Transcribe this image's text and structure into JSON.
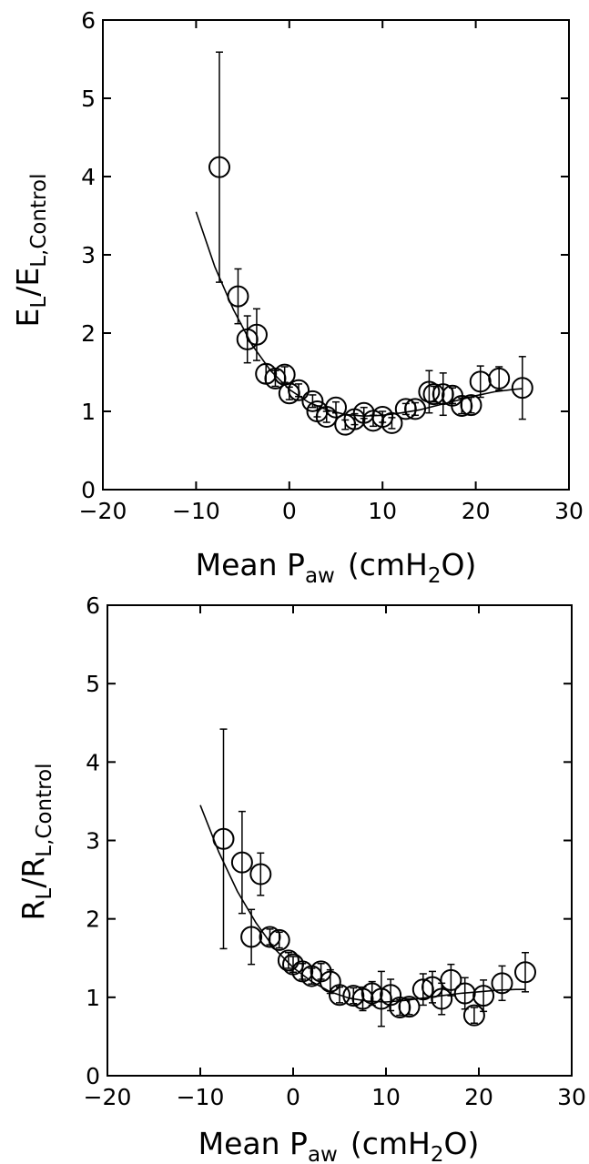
{
  "chart_data": [
    {
      "type": "scatter",
      "xlabel": {
        "main": "Mean P",
        "sub": "aw",
        "unit": "(cmH",
        "unit_sub": "2",
        "unit_end": "O)"
      },
      "ylabel": {
        "a": "E",
        "a_sub": "L",
        "b": "/E",
        "b_sub": "L,Control"
      },
      "xlim": [
        -20,
        30
      ],
      "ylim": [
        0,
        6
      ],
      "xticks": [
        "−20",
        "−10",
        "0",
        "10",
        "20",
        "30"
      ],
      "yticks": [
        "0",
        "1",
        "2",
        "3",
        "4",
        "5",
        "6"
      ],
      "series": [
        {
          "marker": "open-circle",
          "points": [
            {
              "x": -7.5,
              "y": 4.12,
              "err": 1.47
            },
            {
              "x": -5.5,
              "y": 2.47,
              "err": 0.35
            },
            {
              "x": -4.5,
              "y": 1.92,
              "err": 0.3
            },
            {
              "x": -3.5,
              "y": 1.98,
              "err": 0.33
            },
            {
              "x": -2.5,
              "y": 1.48,
              "err": 0.12
            },
            {
              "x": -1.5,
              "y": 1.42,
              "err": 0.1
            },
            {
              "x": -0.5,
              "y": 1.47,
              "err": 0.1
            },
            {
              "x": 0.0,
              "y": 1.23,
              "err": 0.08
            },
            {
              "x": 1.0,
              "y": 1.27,
              "err": 0.08
            },
            {
              "x": 2.5,
              "y": 1.13,
              "err": 0.08
            },
            {
              "x": 3.0,
              "y": 1.0,
              "err": 0.07
            },
            {
              "x": 4.0,
              "y": 0.93,
              "err": 0.07
            },
            {
              "x": 5.0,
              "y": 1.05,
              "err": 0.07
            },
            {
              "x": 6.0,
              "y": 0.83,
              "err": 0.06
            },
            {
              "x": 7.0,
              "y": 0.9,
              "err": 0.07
            },
            {
              "x": 8.0,
              "y": 0.98,
              "err": 0.07
            },
            {
              "x": 9.0,
              "y": 0.88,
              "err": 0.07
            },
            {
              "x": 10.0,
              "y": 0.93,
              "err": 0.07
            },
            {
              "x": 11.0,
              "y": 0.85,
              "err": 0.07
            },
            {
              "x": 12.5,
              "y": 1.03,
              "err": 0.07
            },
            {
              "x": 13.5,
              "y": 1.03,
              "err": 0.08
            },
            {
              "x": 15.0,
              "y": 1.25,
              "err": 0.27
            },
            {
              "x": 15.5,
              "y": 1.22,
              "err": 0.1
            },
            {
              "x": 16.5,
              "y": 1.22,
              "err": 0.27
            },
            {
              "x": 17.5,
              "y": 1.2,
              "err": 0.1
            },
            {
              "x": 18.5,
              "y": 1.07,
              "err": 0.1
            },
            {
              "x": 19.5,
              "y": 1.08,
              "err": 0.1
            },
            {
              "x": 20.5,
              "y": 1.38,
              "err": 0.2
            },
            {
              "x": 22.5,
              "y": 1.42,
              "err": 0.15
            },
            {
              "x": 25.0,
              "y": 1.3,
              "err": 0.4
            }
          ],
          "fit_curve": [
            {
              "x": -10,
              "y": 3.55
            },
            {
              "x": -8,
              "y": 2.85
            },
            {
              "x": -6,
              "y": 2.3
            },
            {
              "x": -4,
              "y": 1.85
            },
            {
              "x": -2,
              "y": 1.52
            },
            {
              "x": 0,
              "y": 1.28
            },
            {
              "x": 2,
              "y": 1.12
            },
            {
              "x": 4,
              "y": 1.02
            },
            {
              "x": 6,
              "y": 0.96
            },
            {
              "x": 8,
              "y": 0.94
            },
            {
              "x": 10,
              "y": 0.95
            },
            {
              "x": 12,
              "y": 0.98
            },
            {
              "x": 14,
              "y": 1.02
            },
            {
              "x": 16,
              "y": 1.08
            },
            {
              "x": 18,
              "y": 1.14
            },
            {
              "x": 20,
              "y": 1.2
            },
            {
              "x": 22,
              "y": 1.25
            },
            {
              "x": 24,
              "y": 1.28
            },
            {
              "x": 25,
              "y": 1.29
            }
          ]
        }
      ]
    },
    {
      "type": "scatter",
      "xlabel": {
        "main": "Mean P",
        "sub": "aw",
        "unit": "(cmH",
        "unit_sub": "2",
        "unit_end": "O)"
      },
      "ylabel": {
        "a": "R",
        "a_sub": "L",
        "b": "/R",
        "b_sub": "L,Control"
      },
      "xlim": [
        -20,
        30
      ],
      "ylim": [
        0,
        6
      ],
      "xticks": [
        "−20",
        "−10",
        "0",
        "10",
        "20",
        "30"
      ],
      "yticks": [
        "0",
        "1",
        "2",
        "3",
        "4",
        "5",
        "6"
      ],
      "series": [
        {
          "marker": "open-circle",
          "points": [
            {
              "x": -7.5,
              "y": 3.02,
              "err": 1.4
            },
            {
              "x": -5.5,
              "y": 2.72,
              "err": 0.65
            },
            {
              "x": -4.5,
              "y": 1.77,
              "err": 0.35
            },
            {
              "x": -3.5,
              "y": 2.57,
              "err": 0.27
            },
            {
              "x": -2.5,
              "y": 1.77,
              "err": 0.1
            },
            {
              "x": -1.5,
              "y": 1.73,
              "err": 0.1
            },
            {
              "x": -0.5,
              "y": 1.47,
              "err": 0.1
            },
            {
              "x": 0.0,
              "y": 1.42,
              "err": 0.1
            },
            {
              "x": 1.0,
              "y": 1.33,
              "err": 0.1
            },
            {
              "x": 2.0,
              "y": 1.27,
              "err": 0.1
            },
            {
              "x": 3.0,
              "y": 1.33,
              "err": 0.1
            },
            {
              "x": 4.0,
              "y": 1.2,
              "err": 0.15
            },
            {
              "x": 5.0,
              "y": 1.03,
              "err": 0.1
            },
            {
              "x": 6.5,
              "y": 1.02,
              "err": 0.1
            },
            {
              "x": 7.5,
              "y": 0.98,
              "err": 0.15
            },
            {
              "x": 8.5,
              "y": 1.05,
              "err": 0.15
            },
            {
              "x": 9.5,
              "y": 0.98,
              "err": 0.35
            },
            {
              "x": 10.5,
              "y": 1.03,
              "err": 0.2
            },
            {
              "x": 11.5,
              "y": 0.87,
              "err": 0.1
            },
            {
              "x": 12.5,
              "y": 0.88,
              "err": 0.1
            },
            {
              "x": 14.0,
              "y": 1.1,
              "err": 0.2
            },
            {
              "x": 15.0,
              "y": 1.13,
              "err": 0.2
            },
            {
              "x": 16.0,
              "y": 0.98,
              "err": 0.2
            },
            {
              "x": 17.0,
              "y": 1.22,
              "err": 0.2
            },
            {
              "x": 18.5,
              "y": 1.05,
              "err": 0.2
            },
            {
              "x": 19.5,
              "y": 0.77,
              "err": 0.1
            },
            {
              "x": 20.5,
              "y": 1.02,
              "err": 0.2
            },
            {
              "x": 22.5,
              "y": 1.18,
              "err": 0.22
            },
            {
              "x": 25.0,
              "y": 1.32,
              "err": 0.25
            }
          ],
          "fit_curve": [
            {
              "x": -10,
              "y": 3.45
            },
            {
              "x": -8,
              "y": 2.85
            },
            {
              "x": -6,
              "y": 2.35
            },
            {
              "x": -4,
              "y": 1.95
            },
            {
              "x": -2,
              "y": 1.62
            },
            {
              "x": 0,
              "y": 1.38
            },
            {
              "x": 2,
              "y": 1.2
            },
            {
              "x": 4,
              "y": 1.07
            },
            {
              "x": 6,
              "y": 0.99
            },
            {
              "x": 8,
              "y": 0.95
            },
            {
              "x": 10,
              "y": 0.94
            },
            {
              "x": 12,
              "y": 0.96
            },
            {
              "x": 14,
              "y": 0.99
            },
            {
              "x": 16,
              "y": 1.02
            },
            {
              "x": 18,
              "y": 1.05
            },
            {
              "x": 20,
              "y": 1.07
            },
            {
              "x": 22,
              "y": 1.09
            },
            {
              "x": 24,
              "y": 1.1
            },
            {
              "x": 25,
              "y": 1.1
            }
          ]
        }
      ]
    }
  ]
}
